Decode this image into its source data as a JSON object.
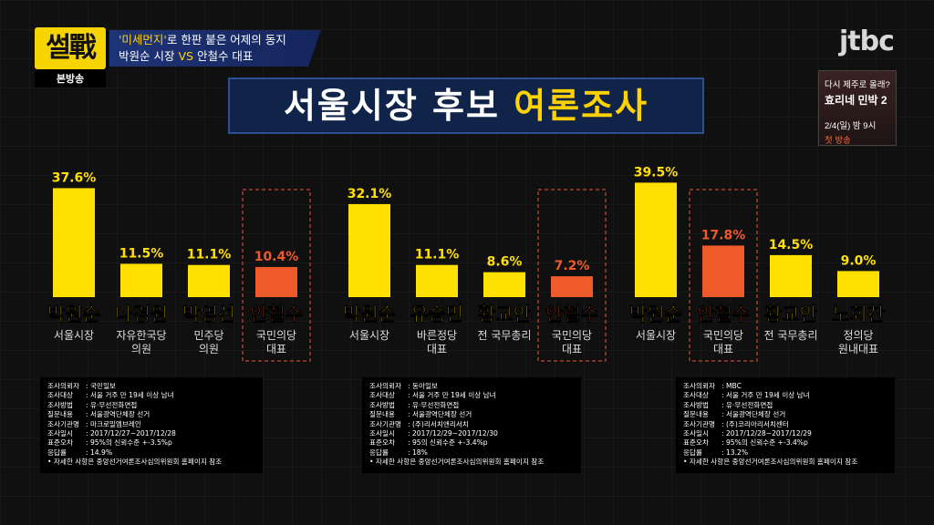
{
  "header": {
    "logo_text": "썰戰",
    "logo_sub": "본방송",
    "topic_line1_quote": "'미세먼지'",
    "topic_line1_rest": "로 한판 붙은 어제의 동지",
    "topic_line2_a": "박원순 시장",
    "topic_line2_vs": "VS",
    "topic_line2_b": "안철수 대표",
    "network": "jtbc"
  },
  "promo": {
    "line1": "다시 제주로 올래?",
    "line2": "효리네 민박 2",
    "line3": "2/4(일) 밤 9시",
    "line4": "첫 방송"
  },
  "title": {
    "part1": "서울시장 후보",
    "part2": "여론조사"
  },
  "colors": {
    "bar": "#ffe000",
    "highlight": "#ef5a2a",
    "highlight_border": "#a0402a",
    "title_bg": "#0f2448"
  },
  "chart_data": [
    {
      "type": "bar",
      "values": [
        37.6,
        11.5,
        11.1,
        10.4
      ],
      "labels": [
        "37.6%",
        "11.5%",
        "11.1%",
        "10.4%"
      ],
      "categories": [
        "박원순",
        "나경원",
        "박영선",
        "안철수"
      ],
      "subtitles": [
        [
          "서울시장"
        ],
        [
          "자유한국당",
          "의원"
        ],
        [
          "민주당",
          "의원"
        ],
        [
          "국민의당",
          "대표"
        ]
      ],
      "highlight_index": 3
    },
    {
      "type": "bar",
      "values": [
        32.1,
        11.1,
        8.6,
        7.2
      ],
      "labels": [
        "32.1%",
        "11.1%",
        "8.6%",
        "7.2%"
      ],
      "categories": [
        "박원순",
        "유승민",
        "황교안",
        "안철수"
      ],
      "subtitles": [
        [
          "서울시장"
        ],
        [
          "바른정당",
          "대표"
        ],
        [
          "전 국무총리"
        ],
        [
          "국민의당",
          "대표"
        ]
      ],
      "highlight_index": 3
    },
    {
      "type": "bar",
      "values": [
        39.5,
        17.8,
        14.5,
        9.0
      ],
      "labels": [
        "39.5%",
        "17.8%",
        "14.5%",
        "9.0%"
      ],
      "categories": [
        "박원순",
        "안철수",
        "황교안",
        "노회찬"
      ],
      "subtitles": [
        [
          "서울시장"
        ],
        [
          "국민의당",
          "대표"
        ],
        [
          "전 국무총리"
        ],
        [
          "정의당",
          "원내대표"
        ]
      ],
      "highlight_index": 1
    }
  ],
  "surveys": [
    {
      "rows": [
        [
          "조사의뢰자",
          ": 국민일보"
        ],
        [
          "조사대상",
          ": 서울 거주 만 19세 이상 남녀"
        ],
        [
          "조사방법",
          ": 유·무선전화면접"
        ],
        [
          "질문내용",
          ": 서울광역단체장 선거"
        ],
        [
          "조사기관명",
          ": 마크로밀엠브레인"
        ],
        [
          "조사일시",
          ": 2017/12/27~2017/12/28"
        ],
        [
          "표준오차",
          ": 95%의 신뢰수준 +-3.5%p"
        ],
        [
          "응답률",
          ": 14.9%"
        ]
      ],
      "note": "• 자세한 사항은 중앙선거여론조사심의위원회 홈페이지 참조"
    },
    {
      "rows": [
        [
          "조사의뢰자",
          ": 동아일보"
        ],
        [
          "조사대상",
          ": 서울 거주 만 19세 이상 남녀"
        ],
        [
          "조사방법",
          ": 유·무선전화면접"
        ],
        [
          "질문내용",
          ": 서울광역단체장 선거"
        ],
        [
          "조사기관명",
          ": (주)리서치앤리서치"
        ],
        [
          "조사일시",
          ": 2017/12/29~2017/12/30"
        ],
        [
          "표준오차",
          ": 95의 신뢰수준 +-3.4%p"
        ],
        [
          "응답률",
          ": 18%"
        ]
      ],
      "note": "• 자세한 사항은 중앙선거여론조사심의위원회 홈페이지 참조"
    },
    {
      "rows": [
        [
          "조사의뢰자",
          ": MBC"
        ],
        [
          "조사대상",
          ": 서울 거주 만 19세 이상 남녀"
        ],
        [
          "조사방법",
          ": 유·무선전화면접"
        ],
        [
          "질문내용",
          ": 서울광역단체장 선거"
        ],
        [
          "조사기관명",
          ": (주)코리아리서치센터"
        ],
        [
          "조사일시",
          ": 2017/12/28~2017/12/29"
        ],
        [
          "표준오차",
          ": 95%의 신뢰수준 +-3.4%p"
        ],
        [
          "응답률",
          ": 13.2%"
        ]
      ],
      "note": "• 자세한 사항은 중앙선거여론조사심의위원회 홈페이지 참조"
    }
  ]
}
